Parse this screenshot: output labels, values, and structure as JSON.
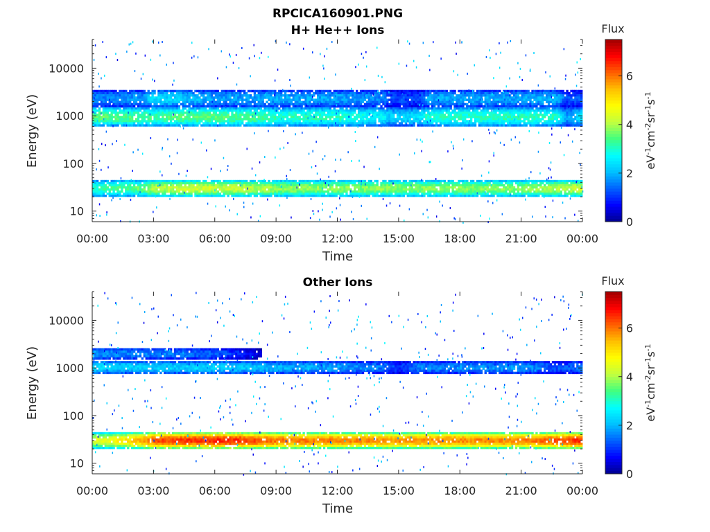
{
  "figure": {
    "title_line1": "RPCICA160901.PNG"
  },
  "colormap": [
    "#00008f",
    "#0000ff",
    "#0060ff",
    "#00c0ff",
    "#00ffff",
    "#40ff80",
    "#c0ff40",
    "#ffff00",
    "#ffc000",
    "#ff6000",
    "#ff0000",
    "#a00000"
  ],
  "chart_data": [
    {
      "type": "heatmap",
      "title": "H+ He++ Ions",
      "xlabel": "Time",
      "ylabel": "Energy (eV)",
      "xlim": [
        "00:00",
        "24:00"
      ],
      "x_ticks": [
        "00:00",
        "03:00",
        "06:00",
        "09:00",
        "12:00",
        "15:00",
        "18:00",
        "21:00",
        "00:00"
      ],
      "y_scale": "log",
      "ylim": [
        6,
        40000
      ],
      "y_ticks": [
        "10",
        "100",
        "1000",
        "10000"
      ],
      "colorbar": {
        "label_top": "Flux",
        "unit": "eV-1cm-2sr-1s-1",
        "range": [
          0,
          7.5
        ],
        "ticks": [
          "0",
          "2",
          "4",
          "6"
        ]
      },
      "bands": [
        {
          "name": "high",
          "e_min": 1500,
          "e_max": 3500,
          "profile": [
            [
              0,
              1.6
            ],
            [
              2.5,
              1.8
            ],
            [
              3,
              2.4
            ],
            [
              4.5,
              2.2
            ],
            [
              6,
              1.8
            ],
            [
              9,
              1.9
            ],
            [
              12,
              1.9
            ],
            [
              14.3,
              1.6
            ],
            [
              14.5,
              1.2
            ],
            [
              16,
              1.1
            ],
            [
              16.5,
              1.9
            ],
            [
              21,
              1.9
            ],
            [
              22.8,
              2.0
            ],
            [
              23.2,
              1.2
            ],
            [
              24,
              1.4
            ]
          ]
        },
        {
          "name": "mid",
          "e_min": 600,
          "e_max": 1500,
          "profile": [
            [
              0,
              3.6
            ],
            [
              3,
              3.3
            ],
            [
              5,
              3.5
            ],
            [
              8,
              3.4
            ],
            [
              9,
              3.1
            ],
            [
              12,
              3.1
            ],
            [
              14.3,
              2.6
            ],
            [
              14.5,
              2.3
            ],
            [
              16,
              2.4
            ],
            [
              16.4,
              3.0
            ],
            [
              21,
              3.1
            ],
            [
              22.8,
              3.0
            ],
            [
              23.2,
              1.8
            ],
            [
              24,
              2.5
            ]
          ]
        },
        {
          "name": "low",
          "e_min": 20,
          "e_max": 45,
          "profile": [
            [
              0,
              3.0
            ],
            [
              1,
              3.3
            ],
            [
              2.6,
              3.6
            ],
            [
              3,
              4.1
            ],
            [
              5,
              4.3
            ],
            [
              7,
              4.2
            ],
            [
              9,
              3.9
            ],
            [
              12,
              3.8
            ],
            [
              15,
              3.8
            ],
            [
              21,
              3.8
            ],
            [
              23,
              4.1
            ],
            [
              24,
              4.3
            ]
          ]
        }
      ]
    },
    {
      "type": "heatmap",
      "title": "Other Ions",
      "xlabel": "Time",
      "ylabel": "Energy (eV)",
      "xlim": [
        "00:00",
        "24:00"
      ],
      "x_ticks": [
        "00:00",
        "03:00",
        "06:00",
        "09:00",
        "12:00",
        "15:00",
        "18:00",
        "21:00",
        "00:00"
      ],
      "y_scale": "log",
      "ylim": [
        6,
        40000
      ],
      "y_ticks": [
        "10",
        "100",
        "1000",
        "10000"
      ],
      "colorbar": {
        "label_top": "Flux",
        "unit": "eV-1cm-2sr-1s-1",
        "range": [
          0,
          7.5
        ],
        "ticks": [
          "0",
          "2",
          "4",
          "6"
        ]
      },
      "bands": [
        {
          "name": "high",
          "e_min": 1500,
          "e_max": 2600,
          "profile": [
            [
              0,
              1.8
            ],
            [
              6,
              1.4
            ],
            [
              9,
              0.2
            ],
            [
              24,
              0.2
            ]
          ]
        },
        {
          "name": "mid",
          "e_min": 750,
          "e_max": 1400,
          "profile": [
            [
              0,
              2.4
            ],
            [
              3,
              2.2
            ],
            [
              6,
              2.3
            ],
            [
              9,
              2.0
            ],
            [
              12,
              1.8
            ],
            [
              14.3,
              1.5
            ],
            [
              15,
              1.0
            ],
            [
              16,
              1.6
            ],
            [
              21,
              1.8
            ],
            [
              23,
              1.2
            ],
            [
              24,
              1.6
            ]
          ]
        },
        {
          "name": "low",
          "e_min": 20,
          "e_max": 45,
          "profile": [
            [
              0,
              4.4
            ],
            [
              1,
              4.6
            ],
            [
              2.5,
              5.6
            ],
            [
              3,
              6.3
            ],
            [
              5,
              6.5
            ],
            [
              7,
              6.6
            ],
            [
              9,
              6.0
            ],
            [
              12,
              5.9
            ],
            [
              15,
              5.8
            ],
            [
              21,
              5.9
            ],
            [
              23,
              6.3
            ],
            [
              24,
              6.6
            ]
          ]
        }
      ]
    }
  ]
}
